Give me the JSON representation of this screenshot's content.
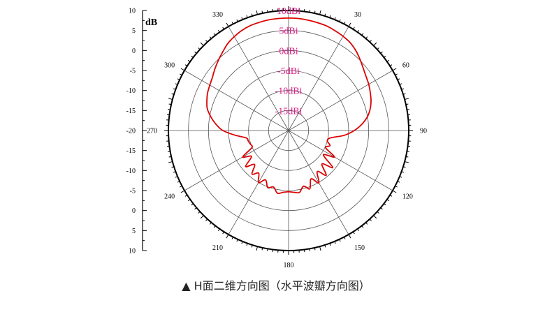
{
  "caption": "▲ H面二维方向图（水平波瓣方向图）",
  "chart_data": {
    "type": "polar-line",
    "unit_label": "dB",
    "angle_labels": [
      "0",
      "30",
      "60",
      "90",
      "120",
      "150",
      "180",
      "210",
      "240",
      "270",
      "300",
      "330"
    ],
    "radial_axis_ticks": [
      "10",
      "5",
      "0",
      "-5",
      "-10",
      "-15",
      "-20",
      "-15",
      "-10",
      "-5",
      "0",
      "5",
      "10"
    ],
    "radial_range": [
      -20,
      10
    ],
    "ring_labels": [
      "10dBi",
      "5dBi",
      "0dBi",
      "-5dBi",
      "-10dBi",
      "-15dBi"
    ],
    "ring_values": [
      10,
      5,
      0,
      -5,
      -10,
      -15
    ],
    "grid": true,
    "series": [
      {
        "color": "#dd0000",
        "angles": [
          0,
          5,
          10,
          15,
          20,
          25,
          30,
          35,
          40,
          45,
          50,
          55,
          60,
          65,
          70,
          75,
          80,
          85,
          90,
          95,
          100,
          105,
          110,
          115,
          120,
          125,
          130,
          135,
          140,
          145,
          150,
          155,
          160,
          165,
          170,
          175,
          180,
          185,
          190,
          195,
          200,
          205,
          210,
          215,
          220,
          225,
          230,
          235,
          240,
          245,
          250,
          255,
          260,
          265,
          270,
          275,
          280,
          285,
          290,
          295,
          300,
          305,
          310,
          315,
          320,
          325,
          330,
          335,
          340,
          345,
          350,
          355
        ],
        "values": [
          8.1,
          8.1,
          8.0,
          7.9,
          7.8,
          7.5,
          7.2,
          6.8,
          6.1,
          5.2,
          4.3,
          3.6,
          3.1,
          2.5,
          1.9,
          1.1,
          0.0,
          -1.6,
          -3.6,
          -6.1,
          -9.4,
          -10.0,
          -9.0,
          -9.8,
          -6.8,
          -9.4,
          -5.6,
          -8.2,
          -5.4,
          -7.5,
          -4.9,
          -6.7,
          -4.5,
          -5.6,
          -4.3,
          -4.5,
          -4.7,
          -4.5,
          -4.1,
          -5.4,
          -4.8,
          -6.4,
          -5.0,
          -7.0,
          -5.8,
          -8.0,
          -6.0,
          -8.7,
          -6.8,
          -9.9,
          -9.9,
          -9.6,
          -9.3,
          -6.6,
          -3.6,
          -1.8,
          -0.3,
          1.0,
          1.7,
          2.3,
          2.7,
          3.2,
          4.0,
          4.8,
          5.6,
          6.5,
          7.1,
          7.6,
          7.9,
          8.0,
          8.1,
          8.1
        ]
      }
    ]
  }
}
